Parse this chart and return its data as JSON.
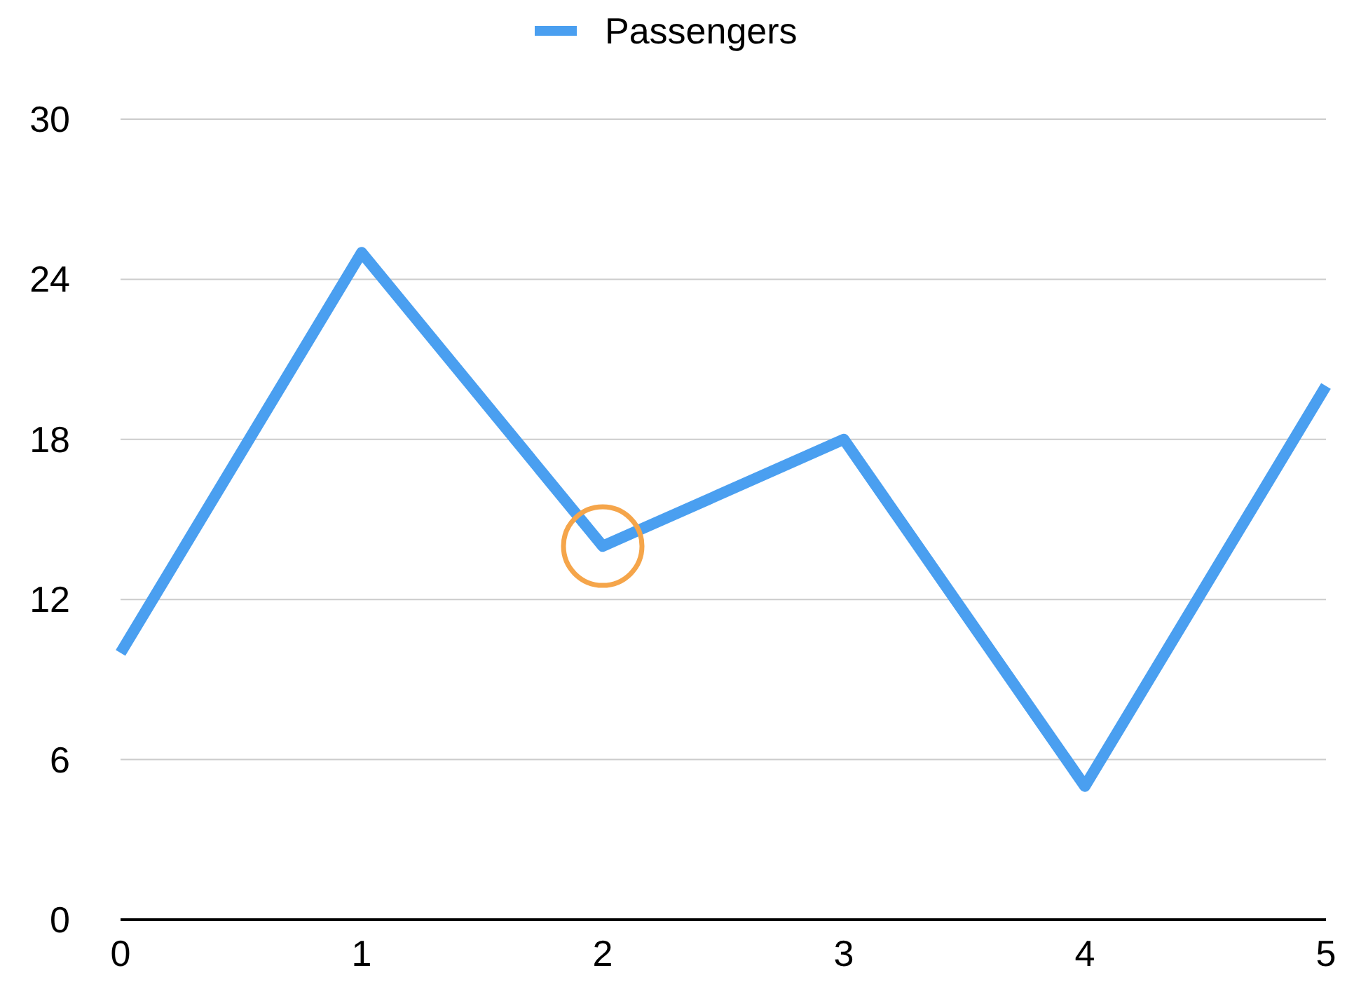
{
  "chart_data": {
    "type": "line",
    "x": [
      0,
      1,
      2,
      3,
      4,
      5
    ],
    "xlim": [
      0,
      5
    ],
    "xticks": [
      0,
      1,
      2,
      3,
      4,
      5
    ],
    "ylim": [
      0,
      30
    ],
    "yticks": [
      0,
      6,
      12,
      18,
      24,
      30
    ],
    "grid": "y",
    "legend": "top",
    "line_style": "solid",
    "series": [
      {
        "name": "Passengers",
        "color": "#4a9ff0",
        "values": [
          10,
          25,
          14,
          18,
          5,
          20
        ],
        "marker": "none"
      },
      {
        "type": "scatter",
        "x": [
          2
        ],
        "color": "#f5a54a",
        "values": [
          14
        ],
        "marker": "circle"
      }
    ]
  }
}
